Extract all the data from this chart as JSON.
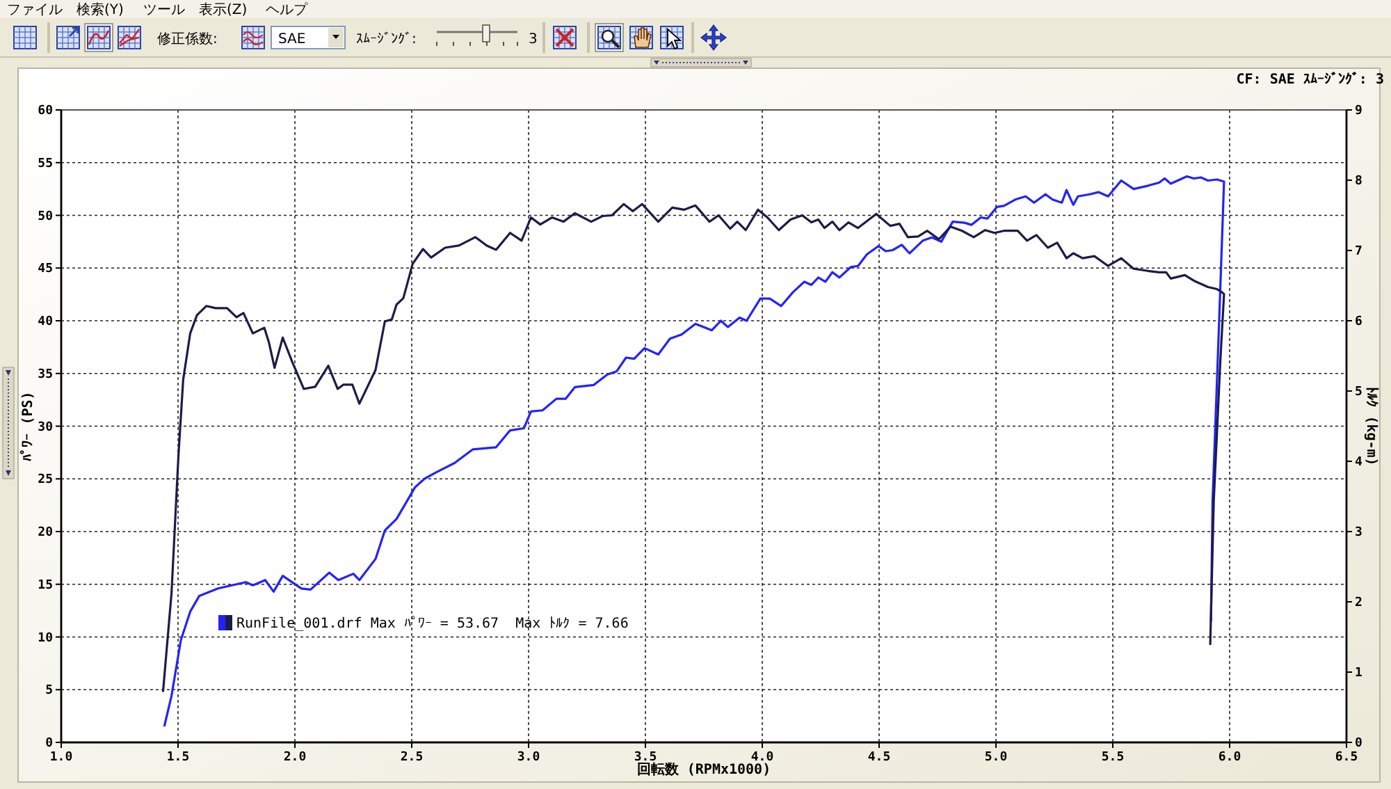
{
  "chart_data": {
    "type": "line",
    "xlabel": "回転数 (RPMx1000)",
    "ylabel": "ﾊﾟﾜｰ (PS)",
    "y2label": "ﾄﾙｸ (kg-m)",
    "xlim": [
      1.0,
      6.5
    ],
    "xticks": [
      {
        "value": 1,
        "label": "1.0"
      },
      1.5,
      {
        "value": 2,
        "label": "2.0"
      },
      2.5,
      {
        "value": 3,
        "label": "3.0"
      },
      3.5,
      {
        "value": 4,
        "label": "4.0"
      },
      4.5,
      {
        "value": 5,
        "label": "5.0"
      },
      5.5,
      {
        "value": 6,
        "label": "6.0"
      },
      6.5
    ],
    "ylim": [
      0,
      60
    ],
    "yticks": [
      0,
      5,
      10,
      15,
      20,
      25,
      30,
      35,
      40,
      45,
      50,
      55,
      60
    ],
    "y2lim": [
      0,
      9
    ],
    "y2ticks": [
      0,
      1,
      2,
      3,
      4,
      5,
      6,
      7,
      8,
      9
    ],
    "grid": true,
    "line_style": "solid",
    "annotations": [
      "ファイル",
      "検索(Y)",
      "ツール",
      "表示(Z)",
      "ヘルプ",
      "修正係数:",
      "SAE",
      "ｽﾑｰｼﾞﾝｸﾞ:",
      "3",
      "CF: SAE ｽﾑｰｼﾞﾝｸﾞ: 3",
      "RunFile_001.drf Max ﾊﾟﾜｰ = 53.67  Max ﾄﾙｸ = 7.66"
    ],
    "series": [
      {
        "color": "#2222ff",
        "x": [
          1.442,
          1.472,
          1.512,
          1.552,
          1.591,
          1.671,
          1.73,
          1.79,
          1.82,
          1.873,
          1.909,
          1.948,
          2.028,
          2.067,
          2.147,
          2.186,
          2.25,
          2.276,
          2.345,
          2.385,
          2.435,
          2.514,
          2.554,
          2.603,
          2.683,
          2.762,
          2.861,
          2.921,
          2.98,
          3.01,
          3.06,
          3.119,
          3.159,
          3.198,
          3.278,
          3.337,
          3.377,
          3.417,
          3.452,
          3.496,
          3.555,
          3.605,
          3.655,
          3.714,
          3.784,
          3.823,
          3.853,
          3.903,
          3.933,
          3.992,
          4.032,
          4.081,
          4.131,
          4.18,
          4.21,
          4.24,
          4.27,
          4.3,
          4.33,
          4.379,
          4.41,
          4.448,
          4.498,
          4.528,
          4.558,
          4.597,
          4.63,
          4.687,
          4.726,
          4.766,
          4.815,
          4.865,
          4.895,
          4.935,
          4.964,
          5.004,
          5.034,
          5.083,
          5.127,
          5.163,
          5.212,
          5.242,
          5.282,
          5.302,
          5.331,
          5.351,
          5.401,
          5.44,
          5.48,
          5.536,
          5.589,
          5.649,
          5.698,
          5.722,
          5.748,
          5.817,
          5.847,
          5.877,
          5.907,
          5.946,
          5.976,
          5.956,
          5.927,
          5.92
        ],
        "values": [
          1.6,
          4.4,
          9.7,
          12.4,
          13.9,
          14.6,
          14.9,
          15.2,
          14.9,
          15.4,
          14.3,
          15.8,
          14.6,
          14.5,
          16.1,
          15.4,
          16.0,
          15.4,
          17.4,
          20.1,
          21.2,
          24.2,
          25.0,
          25.6,
          26.5,
          27.8,
          28.0,
          29.6,
          29.8,
          31.4,
          31.5,
          32.6,
          32.6,
          33.7,
          33.9,
          34.9,
          35.2,
          36.5,
          36.4,
          37.4,
          36.8,
          38.3,
          38.7,
          39.7,
          39.1,
          40.0,
          39.4,
          40.3,
          40.0,
          42.1,
          42.1,
          41.4,
          42.7,
          43.7,
          43.4,
          44.1,
          43.7,
          44.6,
          44.1,
          45.1,
          45.2,
          46.3,
          47.1,
          46.6,
          46.7,
          47.2,
          46.4,
          47.6,
          47.9,
          47.5,
          49.4,
          49.3,
          49.1,
          49.8,
          49.7,
          50.8,
          50.9,
          51.5,
          51.8,
          51.2,
          52.0,
          51.5,
          51.2,
          52.4,
          51.0,
          51.8,
          52.0,
          52.2,
          51.8,
          53.3,
          52.5,
          52.8,
          53.1,
          53.5,
          53.0,
          53.7,
          53.5,
          53.6,
          53.3,
          53.4,
          53.2,
          40.5,
          22.9,
          11.5
        ]
      },
      {
        "color": "#1c1c48",
        "axis": "y2",
        "x": [
          1.436,
          1.472,
          1.502,
          1.522,
          1.552,
          1.581,
          1.621,
          1.661,
          1.71,
          1.75,
          1.78,
          1.82,
          1.869,
          1.889,
          1.913,
          1.948,
          1.988,
          2.038,
          2.087,
          2.143,
          2.183,
          2.207,
          2.246,
          2.276,
          2.345,
          2.385,
          2.415,
          2.435,
          2.464,
          2.504,
          2.548,
          2.583,
          2.643,
          2.702,
          2.772,
          2.821,
          2.861,
          2.921,
          2.97,
          3.01,
          3.05,
          3.1,
          3.149,
          3.198,
          3.268,
          3.317,
          3.357,
          3.407,
          3.446,
          3.486,
          3.555,
          3.615,
          3.665,
          3.714,
          3.774,
          3.813,
          3.863,
          3.893,
          3.929,
          3.982,
          4.022,
          4.071,
          4.121,
          4.171,
          4.21,
          4.24,
          4.266,
          4.3,
          4.33,
          4.369,
          4.409,
          4.488,
          4.548,
          4.587,
          4.623,
          4.667,
          4.706,
          4.756,
          4.806,
          4.855,
          4.905,
          4.954,
          4.994,
          5.034,
          5.093,
          5.133,
          5.173,
          5.222,
          5.262,
          5.302,
          5.331,
          5.371,
          5.421,
          5.48,
          5.536,
          5.589,
          5.649,
          5.698,
          5.728,
          5.748,
          5.808,
          5.847,
          5.907,
          5.946,
          5.966,
          5.976,
          5.96,
          5.932,
          5.917
        ],
        "values": [
          0.73,
          2.12,
          4.1,
          5.16,
          5.82,
          6.08,
          6.21,
          6.18,
          6.18,
          6.05,
          6.11,
          5.82,
          5.9,
          5.69,
          5.33,
          5.76,
          5.42,
          5.03,
          5.06,
          5.36,
          5.03,
          5.09,
          5.09,
          4.82,
          5.3,
          5.99,
          6.02,
          6.23,
          6.32,
          6.81,
          7.02,
          6.9,
          7.04,
          7.07,
          7.19,
          7.07,
          7.01,
          7.25,
          7.14,
          7.47,
          7.37,
          7.47,
          7.41,
          7.53,
          7.41,
          7.49,
          7.5,
          7.66,
          7.56,
          7.66,
          7.41,
          7.61,
          7.58,
          7.64,
          7.41,
          7.5,
          7.31,
          7.41,
          7.29,
          7.58,
          7.47,
          7.29,
          7.44,
          7.5,
          7.4,
          7.44,
          7.32,
          7.41,
          7.29,
          7.4,
          7.32,
          7.52,
          7.35,
          7.38,
          7.19,
          7.2,
          7.28,
          7.16,
          7.34,
          7.28,
          7.19,
          7.29,
          7.25,
          7.28,
          7.28,
          7.14,
          7.22,
          7.04,
          7.11,
          6.89,
          6.96,
          6.89,
          6.92,
          6.78,
          6.89,
          6.74,
          6.71,
          6.69,
          6.69,
          6.6,
          6.65,
          6.57,
          6.48,
          6.45,
          6.41,
          6.38,
          5.42,
          3.44,
          1.4
        ]
      }
    ]
  }
}
